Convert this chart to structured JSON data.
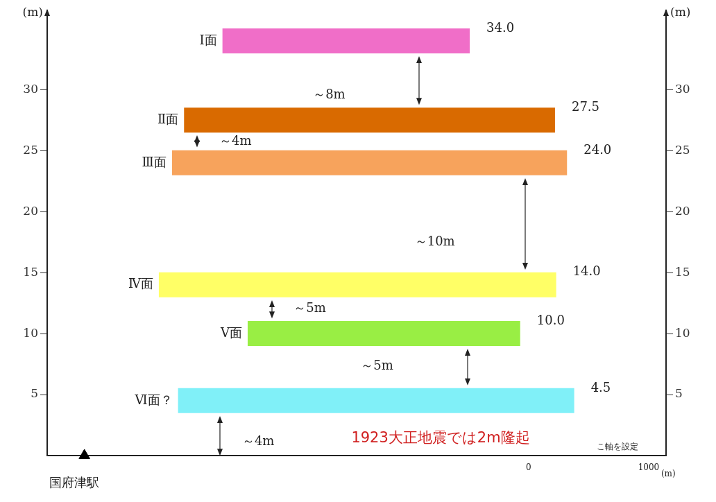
{
  "chart_data": {
    "type": "line",
    "ylabel": "(m)",
    "y2label": "(m)",
    "xlabel": "(m)",
    "xlim": [
      -4010,
      1145
    ],
    "xticks": [
      0,
      1000
    ],
    "ylim": [
      0,
      36.5
    ],
    "yticks": [
      5,
      10,
      15,
      20,
      25,
      30
    ],
    "y2lim": [
      0,
      36.5
    ],
    "y2ticks": [
      5,
      10,
      15,
      20,
      25,
      30
    ],
    "grid": false,
    "legend": false,
    "marker": "none",
    "series": [
      {
        "name": "Ⅰ面",
        "color": "#f06ec8",
        "x": [
          -2550,
          -490
        ],
        "values": [
          34.0,
          34.0
        ],
        "value_labels": [
          null,
          "34.0"
        ]
      },
      {
        "name": "Ⅱ面",
        "color": "#d96a00",
        "x": [
          -2870,
          220
        ],
        "values": [
          27.5,
          27.5
        ],
        "value_labels": [
          null,
          "27.5"
        ]
      },
      {
        "name": "Ⅲ面",
        "color": "#f7a35c",
        "x": [
          -2970,
          320
        ],
        "values": [
          24.0,
          24.0
        ],
        "value_labels": [
          null,
          "24.0"
        ]
      },
      {
        "name": "Ⅳ面",
        "color": "#ffff66",
        "x": [
          -3080,
          230
        ],
        "values": [
          14.0,
          14.0
        ],
        "value_labels": [
          null,
          "14.0"
        ]
      },
      {
        "name": "Ⅴ面",
        "color": "#99ee44",
        "x": [
          -2340,
          -70
        ],
        "values": [
          10.0,
          10.0
        ],
        "value_labels": [
          null,
          "10.0"
        ]
      },
      {
        "name": "Ⅵ面？",
        "color": "#80f0f8",
        "x": [
          -2920,
          380
        ],
        "values": [
          4.5,
          4.5
        ],
        "value_labels": [
          null,
          "4.5"
        ]
      },
      {
        "name": "国府津駅",
        "type": "scatter",
        "marker": "triangle",
        "color": "#000000",
        "x": [
          -3700
        ],
        "values": [
          0
        ]
      }
    ],
    "annotations": [
      "～8m",
      "～4m",
      "～10m",
      "～5m",
      "～5m",
      "～4m",
      "1923大正地震では2m隆起",
      "こ軸を設定"
    ]
  }
}
